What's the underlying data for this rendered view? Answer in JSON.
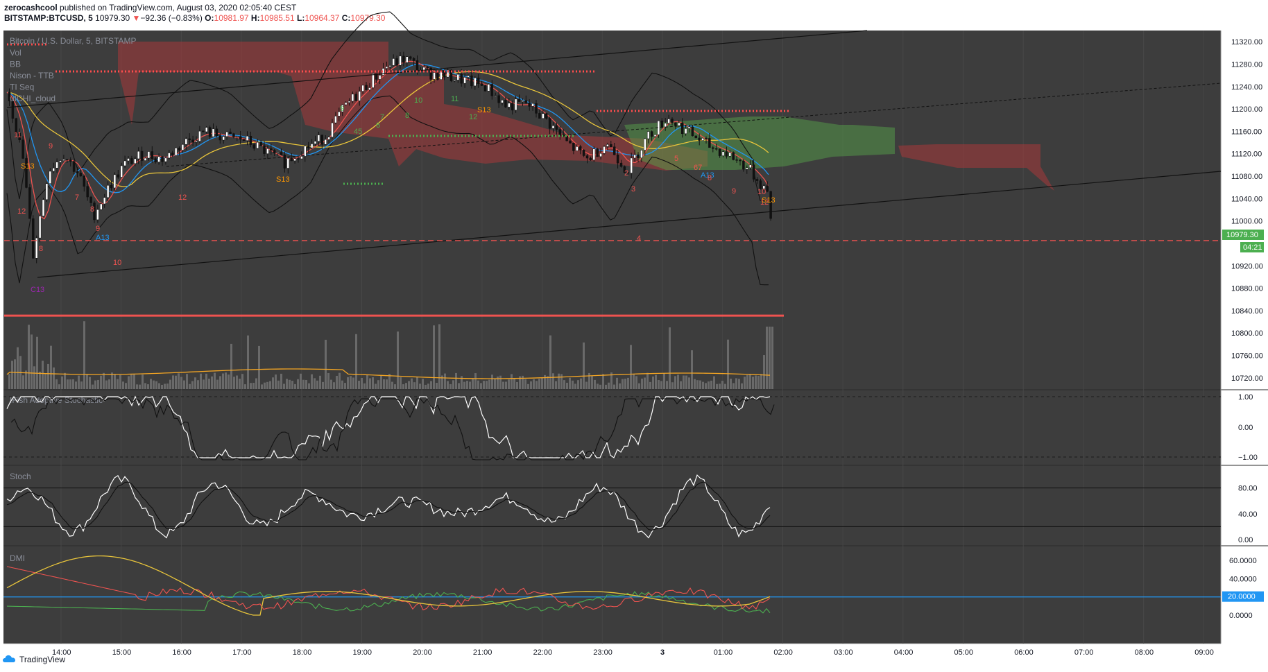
{
  "header": {
    "author": "zerocashcool",
    "published": " published on TradingView.com, August 03, 2020 02:05:40 CEST",
    "symbol": "BITSTAMP:BTCUSD, 5",
    "last": "10979.30",
    "arrow": "▼",
    "change": "−92.36 (−0.83%)",
    "o_label": "O:",
    "o": "10981.97",
    "h_label": "H:",
    "h": "10985.51",
    "l_label": "L:",
    "l": "10964.37",
    "c_label": "C:",
    "c": "10979.30"
  },
  "panes": {
    "main_title": "Bitcoin / U.S. Dollar, 5, BITSTAMP",
    "main_indicators": [
      "Vol",
      "BB",
      "Nison - TTB",
      "TI Seq",
      "uICHI_cloud"
    ],
    "ifish_title": "IFish Adoptive Stochastic",
    "stoch_title": "Stoch",
    "dmi_title": "DMI"
  },
  "axes": {
    "price_ticks": [
      "11320.00",
      "11280.00",
      "11240.00",
      "11200.00",
      "11160.00",
      "11120.00",
      "11080.00",
      "11040.00",
      "11000.00",
      "10920.00",
      "10880.00",
      "10840.00",
      "10800.00",
      "10760.00",
      "10720.00"
    ],
    "price_badge": "10979.30",
    "countdown": "04:21",
    "ifish_ticks": [
      "1.00",
      "0.00",
      "−1.00"
    ],
    "stoch_ticks": [
      "80.00",
      "40.00",
      "0.00"
    ],
    "dmi_ticks": [
      "60.0000",
      "40.0000",
      "0.0000"
    ],
    "dmi_badge": "20.0000",
    "time_ticks": [
      "14:00",
      "15:00",
      "16:00",
      "17:00",
      "18:00",
      "19:00",
      "20:00",
      "21:00",
      "22:00",
      "23:00",
      "3",
      "01:00",
      "02:00",
      "03:00",
      "04:00",
      "05:00",
      "06:00",
      "07:00",
      "08:00",
      "09:00"
    ]
  },
  "seq_labels": [
    {
      "t": "11",
      "c": "#ef5350"
    },
    {
      "t": "S13",
      "c": "#ff9800"
    },
    {
      "t": "9",
      "c": "#ef5350"
    },
    {
      "t": "12",
      "c": "#ef5350"
    },
    {
      "t": "7",
      "c": "#ef5350"
    },
    {
      "t": "8",
      "c": "#ef5350"
    },
    {
      "t": "9",
      "c": "#ef5350"
    },
    {
      "t": "A13",
      "c": "#2196f3"
    },
    {
      "t": "8",
      "c": "#ef5350"
    },
    {
      "t": "10",
      "c": "#ef5350"
    },
    {
      "t": "C13",
      "c": "#9c27b0"
    },
    {
      "t": "12",
      "c": "#ef5350"
    },
    {
      "t": "S13",
      "c": "#ff9800"
    },
    {
      "t": "9",
      "c": "#4caf50"
    },
    {
      "t": "45",
      "c": "#4caf50"
    },
    {
      "t": "7",
      "c": "#4caf50"
    },
    {
      "t": "6",
      "c": "#4caf50"
    },
    {
      "t": "8",
      "c": "#4caf50"
    },
    {
      "t": "10",
      "c": "#4caf50"
    },
    {
      "t": "11",
      "c": "#4caf50"
    },
    {
      "t": "S13",
      "c": "#ff9800"
    },
    {
      "t": "12",
      "c": "#4caf50"
    },
    {
      "t": "2",
      "c": "#ef5350"
    },
    {
      "t": "3",
      "c": "#ef5350"
    },
    {
      "t": "4",
      "c": "#ef5350"
    },
    {
      "t": "5",
      "c": "#ef5350"
    },
    {
      "t": "67",
      "c": "#ef5350"
    },
    {
      "t": "A13",
      "c": "#2196f3"
    },
    {
      "t": "8",
      "c": "#ef5350"
    },
    {
      "t": "9",
      "c": "#ef5350"
    },
    {
      "t": "10",
      "c": "#ef5350"
    },
    {
      "t": "12",
      "c": "#ef5350"
    },
    {
      "t": "S13",
      "c": "#ff9800"
    }
  ],
  "colors": {
    "background": "#3d3d3d",
    "bull": "#ffffff",
    "bear": "#111111",
    "cloud_bear": "#a8393a",
    "cloud_bull": "#55a04a",
    "ma_red": "#ef5350",
    "ma_blue": "#2196f3",
    "ma_yellow": "#e9c53b",
    "dmi_plus": "#4caf50",
    "dmi_minus": "#ef5350",
    "adx": "#e9c53b",
    "badge_green": "#4caf50",
    "accent_blue": "#2196f3"
  },
  "chart_data": {
    "type": "candlestick",
    "symbol": "BITSTAMP:BTCUSD",
    "timeframe": "5",
    "ylim": [
      10700,
      11340
    ],
    "time_range": [
      "13:25",
      "09:15"
    ],
    "ohlc_last": {
      "o": 10981.97,
      "h": 10985.51,
      "l": 10964.37,
      "c": 10979.3
    },
    "close_path": [
      [
        "13:25",
        11230
      ],
      [
        "13:40",
        11110
      ],
      [
        "13:50",
        10940
      ],
      [
        "14:05",
        11090
      ],
      [
        "14:20",
        11120
      ],
      [
        "14:35",
        11085
      ],
      [
        "14:50",
        11010
      ],
      [
        "15:05",
        11060
      ],
      [
        "15:20",
        11100
      ],
      [
        "15:40",
        11120
      ],
      [
        "16:00",
        11110
      ],
      [
        "16:20",
        11140
      ],
      [
        "16:40",
        11160
      ],
      [
        "17:00",
        11150
      ],
      [
        "17:20",
        11145
      ],
      [
        "17:40",
        11125
      ],
      [
        "18:00",
        11105
      ],
      [
        "18:20",
        11130
      ],
      [
        "18:40",
        11150
      ],
      [
        "19:00",
        11205
      ],
      [
        "19:20",
        11240
      ],
      [
        "19:40",
        11275
      ],
      [
        "20:00",
        11290
      ],
      [
        "20:20",
        11265
      ],
      [
        "20:40",
        11260
      ],
      [
        "21:00",
        11250
      ],
      [
        "21:20",
        11240
      ],
      [
        "21:40",
        11205
      ],
      [
        "22:00",
        11210
      ],
      [
        "22:20",
        11180
      ],
      [
        "22:40",
        11140
      ],
      [
        "23:00",
        11110
      ],
      [
        "23:20",
        11140
      ],
      [
        "23:40",
        11090
      ],
      [
        "00:00",
        11150
      ],
      [
        "00:20",
        11185
      ],
      [
        "00:40",
        11160
      ],
      [
        "01:00",
        11135
      ],
      [
        "01:20",
        11120
      ],
      [
        "01:40",
        11095
      ],
      [
        "02:00",
        11050
      ],
      [
        "02:05",
        10979
      ]
    ],
    "horizontal_lines": {
      "red_solid": 10831,
      "red_dashed": 10965
    }
  }
}
